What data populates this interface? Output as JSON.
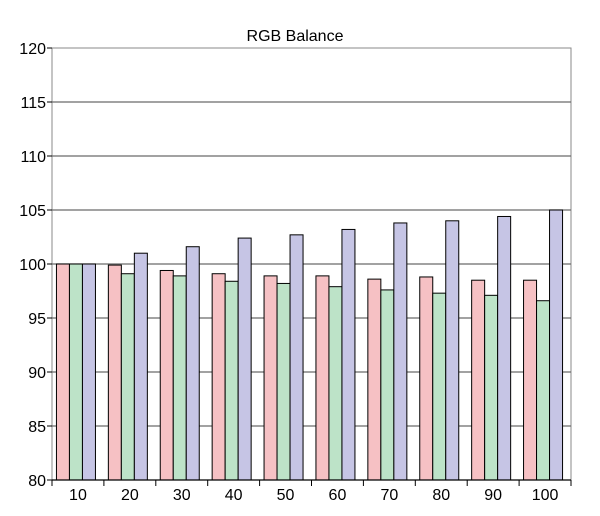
{
  "chart_data": {
    "type": "bar",
    "title": "RGB Balance",
    "xlabel": "",
    "ylabel": "",
    "categories": [
      "10",
      "20",
      "30",
      "40",
      "50",
      "60",
      "70",
      "80",
      "90",
      "100"
    ],
    "series": [
      {
        "color": "#f6c1c4",
        "values": [
          100.0,
          99.9,
          99.4,
          99.1,
          98.9,
          98.9,
          98.6,
          98.8,
          98.5,
          98.5
        ]
      },
      {
        "color": "#bde3c8",
        "values": [
          100.0,
          99.1,
          98.9,
          98.4,
          98.2,
          97.9,
          97.6,
          97.3,
          97.1,
          96.6
        ]
      },
      {
        "color": "#c6c5e5",
        "values": [
          100.0,
          101.0,
          101.6,
          102.4,
          102.7,
          103.2,
          103.8,
          104.0,
          104.4,
          105.0
        ]
      }
    ],
    "ylim": [
      80,
      120
    ],
    "yticks": [
      80,
      85,
      90,
      95,
      100,
      105,
      110,
      115,
      120
    ],
    "grid": true,
    "legend": "none",
    "bar_outline_color": "#000000",
    "gridline_color": "#6b6b6b"
  }
}
